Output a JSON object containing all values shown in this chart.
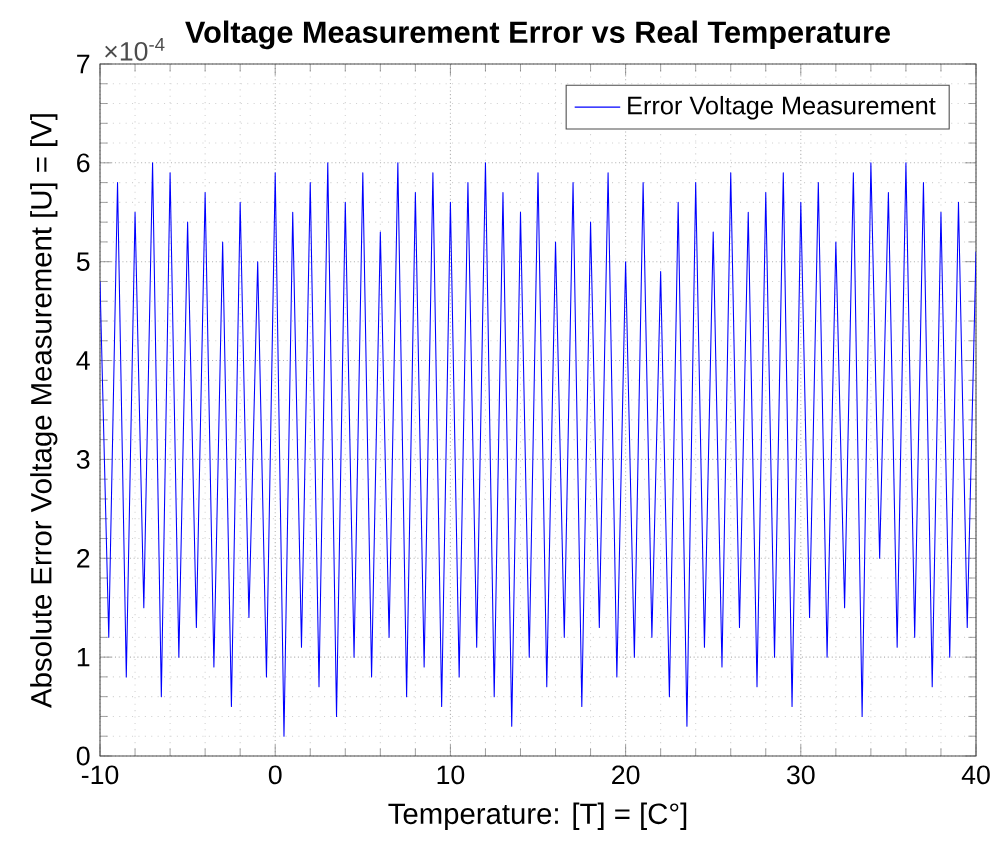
{
  "chart_data": {
    "type": "line",
    "title": "Voltage Measurement Error vs Real Temperature",
    "xlabel": "Temperature: [T] = [C°]",
    "ylabel": "Absolute Error Voltage Measurement [U] = [V]",
    "annotations": [
      "×10$^{-4}$"
    ],
    "x": [
      -10,
      -9.5,
      -9,
      -8.5,
      -8,
      -7.5,
      -7,
      -6.5,
      -6,
      -5.5,
      -5,
      -4.5,
      -4,
      -3.5,
      -3,
      -2.5,
      -2,
      -1.5,
      -1,
      -0.5,
      0,
      0.5,
      1,
      1.5,
      2,
      2.5,
      3,
      3.5,
      4,
      4.5,
      5,
      5.5,
      6,
      6.5,
      7,
      7.5,
      8,
      8.5,
      9,
      9.5,
      10,
      10.5,
      11,
      11.5,
      12,
      12.5,
      13,
      13.5,
      14,
      14.5,
      15,
      15.5,
      16,
      16.5,
      17,
      17.5,
      18,
      18.5,
      19,
      19.5,
      20,
      20.5,
      21,
      21.5,
      22,
      22.5,
      23,
      23.5,
      24,
      24.5,
      25,
      25.5,
      26,
      26.5,
      27,
      27.5,
      28,
      28.5,
      29,
      29.5,
      30,
      30.5,
      31,
      31.5,
      32,
      32.5,
      33,
      33.5,
      34,
      34.5,
      35,
      35.5,
      36,
      36.5,
      37,
      37.5,
      38,
      38.5,
      39,
      39.5,
      40
    ],
    "series": [
      {
        "name": "Error Voltage Measurement",
        "color": "#0000ff",
        "values": [
          4.8,
          1.2,
          5.8,
          0.8,
          5.5,
          1.5,
          6.0,
          0.6,
          5.9,
          1.0,
          5.4,
          1.3,
          5.7,
          0.9,
          5.2,
          0.5,
          5.6,
          1.4,
          5.0,
          0.8,
          5.9,
          0.2,
          5.5,
          1.1,
          5.8,
          0.7,
          6.0,
          0.4,
          5.6,
          1.0,
          5.9,
          0.8,
          5.3,
          1.2,
          6.0,
          0.6,
          5.7,
          0.9,
          5.9,
          0.5,
          5.6,
          0.8,
          5.8,
          1.1,
          6.0,
          0.6,
          5.7,
          0.3,
          5.5,
          1.0,
          5.9,
          0.7,
          5.2,
          1.2,
          5.8,
          0.5,
          5.4,
          1.3,
          5.9,
          0.8,
          5.0,
          1.0,
          5.8,
          1.2,
          4.9,
          0.6,
          5.6,
          0.3,
          5.8,
          1.1,
          5.3,
          0.9,
          5.9,
          1.3,
          5.5,
          0.7,
          5.7,
          1.0,
          5.9,
          0.5,
          5.6,
          1.4,
          5.8,
          1.0,
          5.2,
          1.5,
          5.9,
          0.4,
          6.0,
          2.0,
          5.7,
          1.1,
          6.0,
          1.2,
          5.8,
          0.7,
          5.5,
          1.0,
          5.6,
          1.3,
          5.1
        ]
      }
    ],
    "xlim": [
      -10,
      40
    ],
    "ylim": [
      0,
      7
    ],
    "xticks": [
      -10,
      0,
      10,
      20,
      30,
      40
    ],
    "yticks": [
      0,
      1,
      2,
      3,
      4,
      5,
      6,
      7
    ],
    "grid": true,
    "legend": "top right",
    "line_style": "solid"
  }
}
